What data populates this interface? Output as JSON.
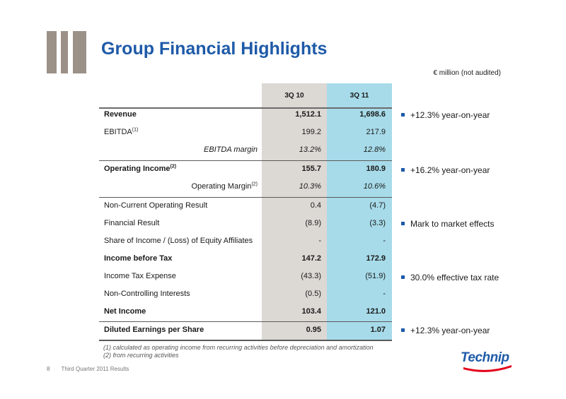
{
  "title": "Group Financial Highlights",
  "units": "€ million (not audited)",
  "columns": [
    "3Q 10",
    "3Q 11"
  ],
  "rows": [
    {
      "label": "Revenue",
      "sup": "",
      "v1": "1,512.1",
      "v2": "1,698.6"
    },
    {
      "label": "EBITDA",
      "sup": "(1)",
      "v1": "199.2",
      "v2": "217.9"
    },
    {
      "label": "EBITDA margin",
      "sup": "",
      "v1": "13.2%",
      "v2": "12.8%"
    },
    {
      "label": "Operating Income",
      "sup": "(2)",
      "v1": "155.7",
      "v2": "180.9"
    },
    {
      "label": "Operating Margin",
      "sup": "(2)",
      "v1": "10.3%",
      "v2": "10.6%"
    },
    {
      "label": "Non-Current Operating Result",
      "sup": "",
      "v1": "0.4",
      "v2": "(4.7)"
    },
    {
      "label": "Financial Result",
      "sup": "",
      "v1": "(8.9)",
      "v2": "(3.3)"
    },
    {
      "label": "Share of Income / (Loss) of Equity Affiliates",
      "sup": "",
      "v1": "-",
      "v2": "-"
    },
    {
      "label": "Income before Tax",
      "sup": "",
      "v1": "147.2",
      "v2": "172.9"
    },
    {
      "label": "Income Tax Expense",
      "sup": "",
      "v1": "(43.3)",
      "v2": "(51.9)"
    },
    {
      "label": "Non-Controlling Interests",
      "sup": "",
      "v1": "(0.5)",
      "v2": "-"
    },
    {
      "label": "Net Income",
      "sup": "",
      "v1": "103.4",
      "v2": "121.0"
    },
    {
      "label": "Diluted Earnings per Share",
      "sup": "",
      "v1": "0.95",
      "v2": "1.07"
    }
  ],
  "bullets": [
    "+12.3% year-on-year",
    "+16.2% year-on-year",
    "Mark to market effects",
    "30.0% effective tax rate",
    "+12.3% year-on-year"
  ],
  "footnotes": [
    "(1) calculated as operating income from recurring activities before depreciation and amortization",
    "(2) from recurring activities"
  ],
  "footer": {
    "page": "8",
    "text": "Third Quarter 2011 Results"
  },
  "brand": "Technip",
  "colors": {
    "title": "#1e5aa8",
    "col_3q10": "#dcd8d4",
    "col_3q11": "#a7dbe9",
    "logo_bars": "#9c9187"
  }
}
